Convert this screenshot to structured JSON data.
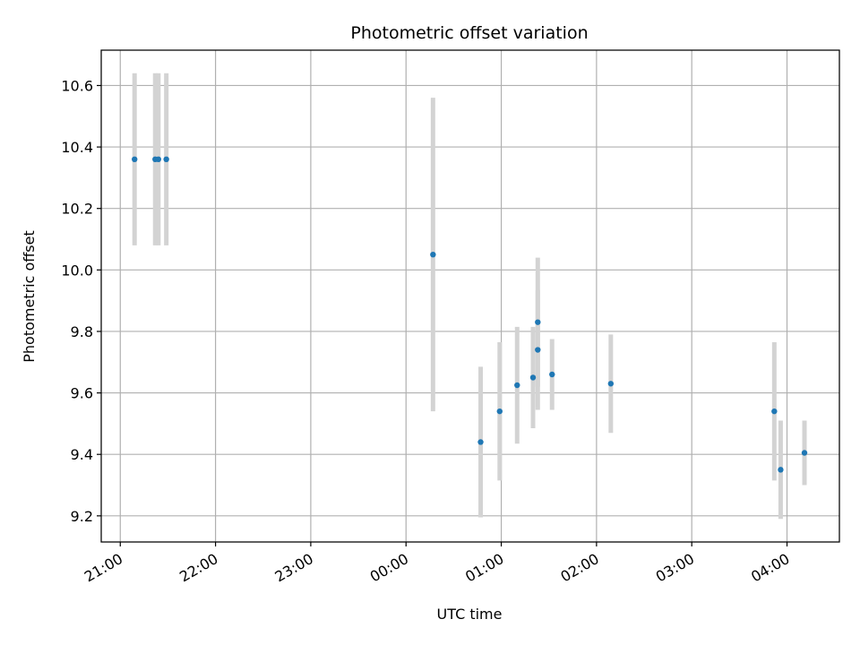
{
  "chart_data": {
    "type": "scatter",
    "title": "Photometric offset variation",
    "xlabel": "UTC time",
    "ylabel": "Photometric offset",
    "x_axis_kind": "time",
    "x_tick_labels": [
      "21:00",
      "22:00",
      "23:00",
      "00:00",
      "01:00",
      "02:00",
      "03:00",
      "04:00"
    ],
    "x_tick_hours": [
      21,
      22,
      23,
      24,
      25,
      26,
      27,
      28
    ],
    "xlim": [
      "20:48",
      "04:33"
    ],
    "ylim": [
      9.115,
      10.715
    ],
    "y_ticks": [
      9.2,
      9.4,
      9.6,
      9.8,
      10.0,
      10.2,
      10.4,
      10.6
    ],
    "y_tick_labels": [
      "9.2",
      "9.4",
      "9.6",
      "9.8",
      "10.0",
      "10.2",
      "10.4",
      "10.6"
    ],
    "grid": true,
    "colors": {
      "point": "#1f77b4",
      "errorbar": "#d3d3d3",
      "grid": "#b0b0b0"
    },
    "series": [
      {
        "points": [
          {
            "x": "21:09",
            "y": 10.36,
            "err": 0.28
          },
          {
            "x": "21:22",
            "y": 10.36,
            "err": 0.28
          },
          {
            "x": "21:24",
            "y": 10.36,
            "err": 0.28
          },
          {
            "x": "21:29",
            "y": 10.36,
            "err": 0.28
          },
          {
            "x": "00:17",
            "y": 10.05,
            "err": 0.51
          },
          {
            "x": "00:47",
            "y": 9.44,
            "err": 0.245
          },
          {
            "x": "00:59",
            "y": 9.54,
            "err": 0.225
          },
          {
            "x": "01:10",
            "y": 9.625,
            "err": 0.19
          },
          {
            "x": "01:20",
            "y": 9.65,
            "err": 0.165
          },
          {
            "x": "01:23",
            "y": 9.83,
            "err": 0.21
          },
          {
            "x": "01:23",
            "y": 9.74,
            "err": 0.195
          },
          {
            "x": "01:32",
            "y": 9.66,
            "err": 0.115
          },
          {
            "x": "02:09",
            "y": 9.63,
            "err": 0.16
          },
          {
            "x": "03:52",
            "y": 9.54,
            "err": 0.225
          },
          {
            "x": "03:56",
            "y": 9.35,
            "err": 0.16
          },
          {
            "x": "04:11",
            "y": 9.405,
            "err": 0.105
          }
        ]
      }
    ]
  }
}
